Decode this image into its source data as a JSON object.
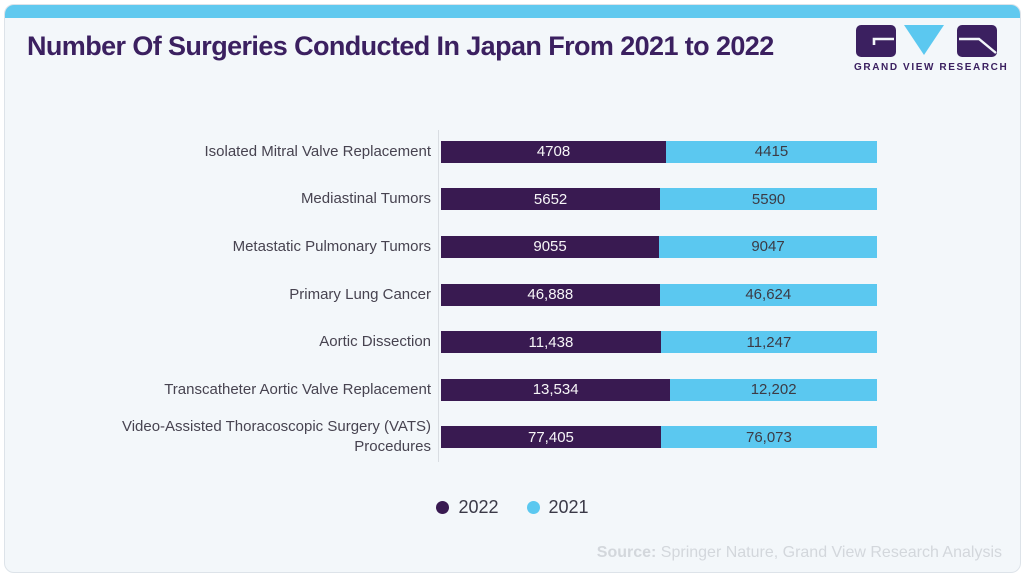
{
  "header": {
    "title": "Number Of Surgeries Conducted In Japan From 2021 to 2022",
    "logo_text": "GRAND VIEW RESEARCH"
  },
  "colors": {
    "accent_strip": "#60c9ef",
    "brand_purple": "#3b2060",
    "bar_2022": "#391a51",
    "bar_2021": "#5bc8f0",
    "card_background": "#f3f7fa",
    "label_text": "#474350",
    "source_text": "#d3d7dc"
  },
  "chart_data": {
    "type": "bar",
    "orientation": "horizontal",
    "style": "100%-stacked pair, segment width proportional to value",
    "title": "Number Of Surgeries Conducted In Japan From 2021 to 2022",
    "categories": [
      "Isolated Mitral Valve Replacement",
      "Mediastinal Tumors",
      "Metastatic Pulmonary Tumors",
      "Primary Lung Cancer",
      "Aortic Dissection",
      "Transcatheter Aortic Valve Replacement",
      "Video-Assisted Thoracoscopic Surgery (VATS) Procedures"
    ],
    "series": [
      {
        "name": "2022",
        "color": "#391a51",
        "values": [
          4708,
          5652,
          9055,
          46888,
          11438,
          13534,
          77405
        ],
        "labels": [
          "4708",
          "5652",
          "9055",
          "46,888",
          "11,438",
          "13,534",
          "77,405"
        ]
      },
      {
        "name": "2021",
        "color": "#5bc8f0",
        "values": [
          4415,
          5590,
          9047,
          46624,
          11247,
          12202,
          76073
        ],
        "labels": [
          "4415",
          "5590",
          "9047",
          "46,624",
          "11,247",
          "12,202",
          "76,073"
        ]
      }
    ],
    "legend_position": "bottom",
    "grid": false
  },
  "footer": {
    "source_label": "Source:",
    "source_text": " Springer Nature, Grand View Research Analysis"
  }
}
